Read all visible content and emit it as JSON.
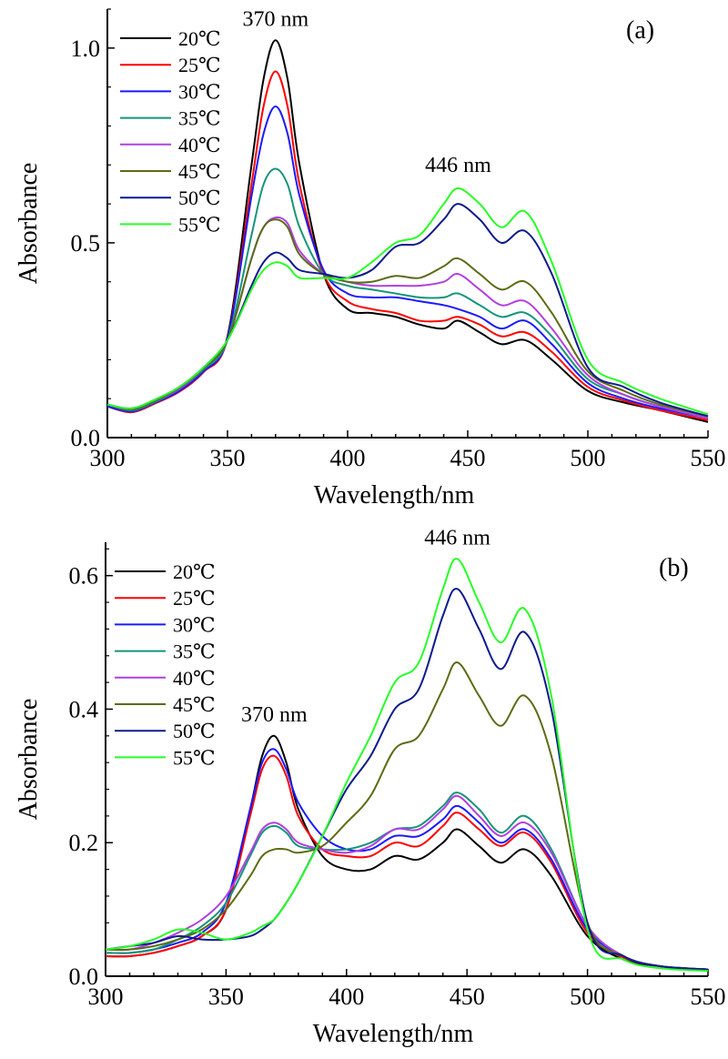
{
  "chart_data": [
    {
      "type": "line",
      "panel_label": "(a)",
      "xlabel": "Wavelength/nm",
      "ylabel": "Absorbance",
      "xlim": [
        300,
        550
      ],
      "ylim": [
        0,
        1.1
      ],
      "xticks": [
        "300",
        "350",
        "400",
        "450",
        "500",
        "550"
      ],
      "yticks": [
        "0.0",
        "0.5",
        "1.0"
      ],
      "ytick_values": [
        0,
        0.5,
        1.0
      ],
      "grid": false,
      "legend_position": "top-left",
      "annotations": [
        {
          "text": "370 nm",
          "x": 370,
          "y": 1.02
        },
        {
          "text": "446 nm",
          "x": 446,
          "y": 0.645
        }
      ],
      "x": [
        300,
        310,
        320,
        330,
        340,
        350,
        360,
        365,
        370,
        375,
        380,
        390,
        400,
        410,
        420,
        430,
        440,
        446,
        455,
        464,
        474,
        485,
        500,
        515,
        530,
        550
      ],
      "series": [
        {
          "name": "20℃",
          "color": "#000000",
          "values": [
            0.085,
            0.07,
            0.09,
            0.12,
            0.17,
            0.26,
            0.7,
            0.92,
            1.02,
            0.92,
            0.7,
            0.42,
            0.33,
            0.32,
            0.31,
            0.29,
            0.28,
            0.3,
            0.27,
            0.24,
            0.25,
            0.2,
            0.12,
            0.09,
            0.07,
            0.04
          ]
        },
        {
          "name": "25℃",
          "color": "#ff0000",
          "values": [
            0.08,
            0.065,
            0.088,
            0.118,
            0.168,
            0.255,
            0.65,
            0.85,
            0.94,
            0.85,
            0.65,
            0.42,
            0.35,
            0.33,
            0.32,
            0.3,
            0.3,
            0.31,
            0.29,
            0.26,
            0.27,
            0.22,
            0.13,
            0.095,
            0.07,
            0.045
          ]
        },
        {
          "name": "30℃",
          "color": "#1a1aff",
          "values": [
            0.08,
            0.067,
            0.09,
            0.12,
            0.17,
            0.255,
            0.62,
            0.78,
            0.85,
            0.78,
            0.62,
            0.43,
            0.37,
            0.36,
            0.36,
            0.35,
            0.34,
            0.33,
            0.31,
            0.28,
            0.3,
            0.24,
            0.14,
            0.1,
            0.075,
            0.05
          ]
        },
        {
          "name": "35℃",
          "color": "#14957a",
          "values": [
            0.085,
            0.07,
            0.092,
            0.125,
            0.175,
            0.25,
            0.52,
            0.65,
            0.69,
            0.65,
            0.54,
            0.42,
            0.39,
            0.38,
            0.37,
            0.36,
            0.36,
            0.37,
            0.34,
            0.31,
            0.32,
            0.26,
            0.15,
            0.11,
            0.08,
            0.05
          ]
        },
        {
          "name": "40℃",
          "color": "#b23fe0",
          "values": [
            0.085,
            0.072,
            0.095,
            0.125,
            0.178,
            0.25,
            0.46,
            0.54,
            0.565,
            0.55,
            0.48,
            0.42,
            0.4,
            0.39,
            0.39,
            0.39,
            0.4,
            0.42,
            0.38,
            0.34,
            0.35,
            0.28,
            0.16,
            0.11,
            0.08,
            0.05
          ]
        },
        {
          "name": "45℃",
          "color": "#5c6b14",
          "values": [
            0.085,
            0.072,
            0.095,
            0.128,
            0.178,
            0.25,
            0.46,
            0.54,
            0.56,
            0.54,
            0.47,
            0.42,
            0.4,
            0.4,
            0.415,
            0.41,
            0.44,
            0.46,
            0.42,
            0.38,
            0.4,
            0.32,
            0.17,
            0.12,
            0.085,
            0.055
          ]
        },
        {
          "name": "50℃",
          "color": "#0d1a8c",
          "values": [
            0.085,
            0.075,
            0.098,
            0.13,
            0.18,
            0.25,
            0.39,
            0.45,
            0.475,
            0.46,
            0.43,
            0.42,
            0.41,
            0.43,
            0.49,
            0.5,
            0.56,
            0.6,
            0.56,
            0.5,
            0.53,
            0.42,
            0.18,
            0.13,
            0.09,
            0.055
          ]
        },
        {
          "name": "55℃",
          "color": "#26ff26",
          "values": [
            0.085,
            0.075,
            0.098,
            0.13,
            0.18,
            0.25,
            0.38,
            0.43,
            0.45,
            0.44,
            0.41,
            0.41,
            0.41,
            0.45,
            0.5,
            0.52,
            0.6,
            0.64,
            0.6,
            0.54,
            0.58,
            0.45,
            0.2,
            0.14,
            0.1,
            0.06
          ]
        }
      ]
    },
    {
      "type": "line",
      "panel_label": "(b)",
      "xlabel": "Wavelength/nm",
      "ylabel": "Absorbance",
      "xlim": [
        300,
        550
      ],
      "ylim": [
        0,
        0.65
      ],
      "xticks": [
        "300",
        "350",
        "400",
        "450",
        "500",
        "550"
      ],
      "yticks": [
        "0.0",
        "0.2",
        "0.4",
        "0.6"
      ],
      "ytick_values": [
        0,
        0.2,
        0.4,
        0.6
      ],
      "grid": false,
      "legend_position": "top-left",
      "annotations": [
        {
          "text": "446 nm",
          "x": 446,
          "y": 0.625
        },
        {
          "text": "370 nm",
          "x": 370,
          "y": 0.36
        }
      ],
      "x": [
        300,
        310,
        320,
        330,
        340,
        350,
        360,
        365,
        370,
        375,
        380,
        390,
        400,
        410,
        420,
        430,
        440,
        446,
        455,
        464,
        474,
        485,
        500,
        515,
        530,
        550
      ],
      "series": [
        {
          "name": "20℃",
          "color": "#000000",
          "values": [
            0.03,
            0.03,
            0.035,
            0.045,
            0.06,
            0.1,
            0.25,
            0.33,
            0.36,
            0.32,
            0.25,
            0.18,
            0.16,
            0.16,
            0.18,
            0.175,
            0.2,
            0.22,
            0.195,
            0.17,
            0.19,
            0.15,
            0.06,
            0.025,
            0.015,
            0.01
          ]
        },
        {
          "name": "25℃",
          "color": "#ff0000",
          "values": [
            0.03,
            0.03,
            0.035,
            0.045,
            0.06,
            0.1,
            0.24,
            0.31,
            0.33,
            0.3,
            0.24,
            0.19,
            0.18,
            0.18,
            0.2,
            0.195,
            0.225,
            0.245,
            0.22,
            0.195,
            0.215,
            0.17,
            0.065,
            0.028,
            0.015,
            0.01
          ]
        },
        {
          "name": "30℃",
          "color": "#1a1aff",
          "values": [
            0.035,
            0.035,
            0.04,
            0.05,
            0.065,
            0.11,
            0.25,
            0.32,
            0.34,
            0.31,
            0.26,
            0.21,
            0.19,
            0.19,
            0.21,
            0.21,
            0.235,
            0.255,
            0.23,
            0.2,
            0.22,
            0.175,
            0.07,
            0.03,
            0.015,
            0.01
          ]
        },
        {
          "name": "35℃",
          "color": "#14957a",
          "values": [
            0.035,
            0.035,
            0.04,
            0.055,
            0.075,
            0.11,
            0.18,
            0.215,
            0.225,
            0.215,
            0.195,
            0.19,
            0.19,
            0.2,
            0.22,
            0.225,
            0.255,
            0.275,
            0.25,
            0.215,
            0.24,
            0.19,
            0.075,
            0.03,
            0.015,
            0.01
          ]
        },
        {
          "name": "40℃",
          "color": "#b23fe0",
          "values": [
            0.04,
            0.04,
            0.05,
            0.065,
            0.085,
            0.12,
            0.185,
            0.22,
            0.23,
            0.22,
            0.2,
            0.19,
            0.185,
            0.195,
            0.22,
            0.22,
            0.25,
            0.27,
            0.24,
            0.21,
            0.23,
            0.185,
            0.075,
            0.03,
            0.015,
            0.01
          ]
        },
        {
          "name": "45℃",
          "color": "#5c6b14",
          "values": [
            0.04,
            0.04,
            0.045,
            0.055,
            0.07,
            0.1,
            0.15,
            0.18,
            0.19,
            0.19,
            0.185,
            0.195,
            0.23,
            0.27,
            0.34,
            0.36,
            0.43,
            0.47,
            0.42,
            0.375,
            0.42,
            0.33,
            0.08,
            0.03,
            0.015,
            0.01
          ]
        },
        {
          "name": "50℃",
          "color": "#0d1a8c",
          "values": [
            0.04,
            0.045,
            0.05,
            0.06,
            0.055,
            0.055,
            0.06,
            0.07,
            0.085,
            0.11,
            0.14,
            0.21,
            0.28,
            0.33,
            0.4,
            0.43,
            0.54,
            0.58,
            0.52,
            0.46,
            0.515,
            0.4,
            0.08,
            0.03,
            0.015,
            0.01
          ]
        },
        {
          "name": "55℃",
          "color": "#26ff26",
          "values": [
            0.04,
            0.045,
            0.055,
            0.07,
            0.065,
            0.055,
            0.065,
            0.075,
            0.085,
            0.11,
            0.14,
            0.21,
            0.29,
            0.36,
            0.44,
            0.47,
            0.58,
            0.625,
            0.56,
            0.5,
            0.55,
            0.42,
            0.07,
            0.025,
            0.012,
            0.008
          ]
        }
      ]
    }
  ]
}
